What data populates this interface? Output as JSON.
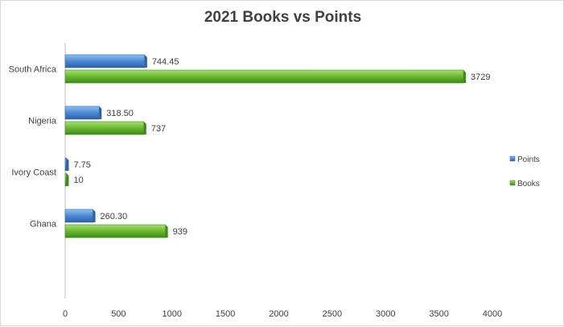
{
  "chart_data": {
    "type": "bar",
    "orientation": "horizontal",
    "title": "2021 Books vs Points",
    "categories": [
      "South Africa",
      "Nigeria",
      "Ivory Coast",
      "Ghana"
    ],
    "series": [
      {
        "name": "Points",
        "values": [
          744.45,
          318.5,
          7.75,
          260.3
        ],
        "labels": [
          "744.45",
          "318.50",
          "7.75",
          "260.30"
        ],
        "color": "#4f8fd6"
      },
      {
        "name": "Books",
        "values": [
          3729,
          737,
          10,
          939
        ],
        "labels": [
          "3729",
          "737",
          "10",
          "939"
        ],
        "color": "#6cbf34"
      }
    ],
    "xlim": [
      0,
      4000
    ],
    "xticks": [
      0,
      500,
      1000,
      1500,
      2000,
      2500,
      3000,
      3500,
      4000
    ],
    "xlabel": "",
    "ylabel": "",
    "grid": false,
    "legend_position": "right"
  }
}
